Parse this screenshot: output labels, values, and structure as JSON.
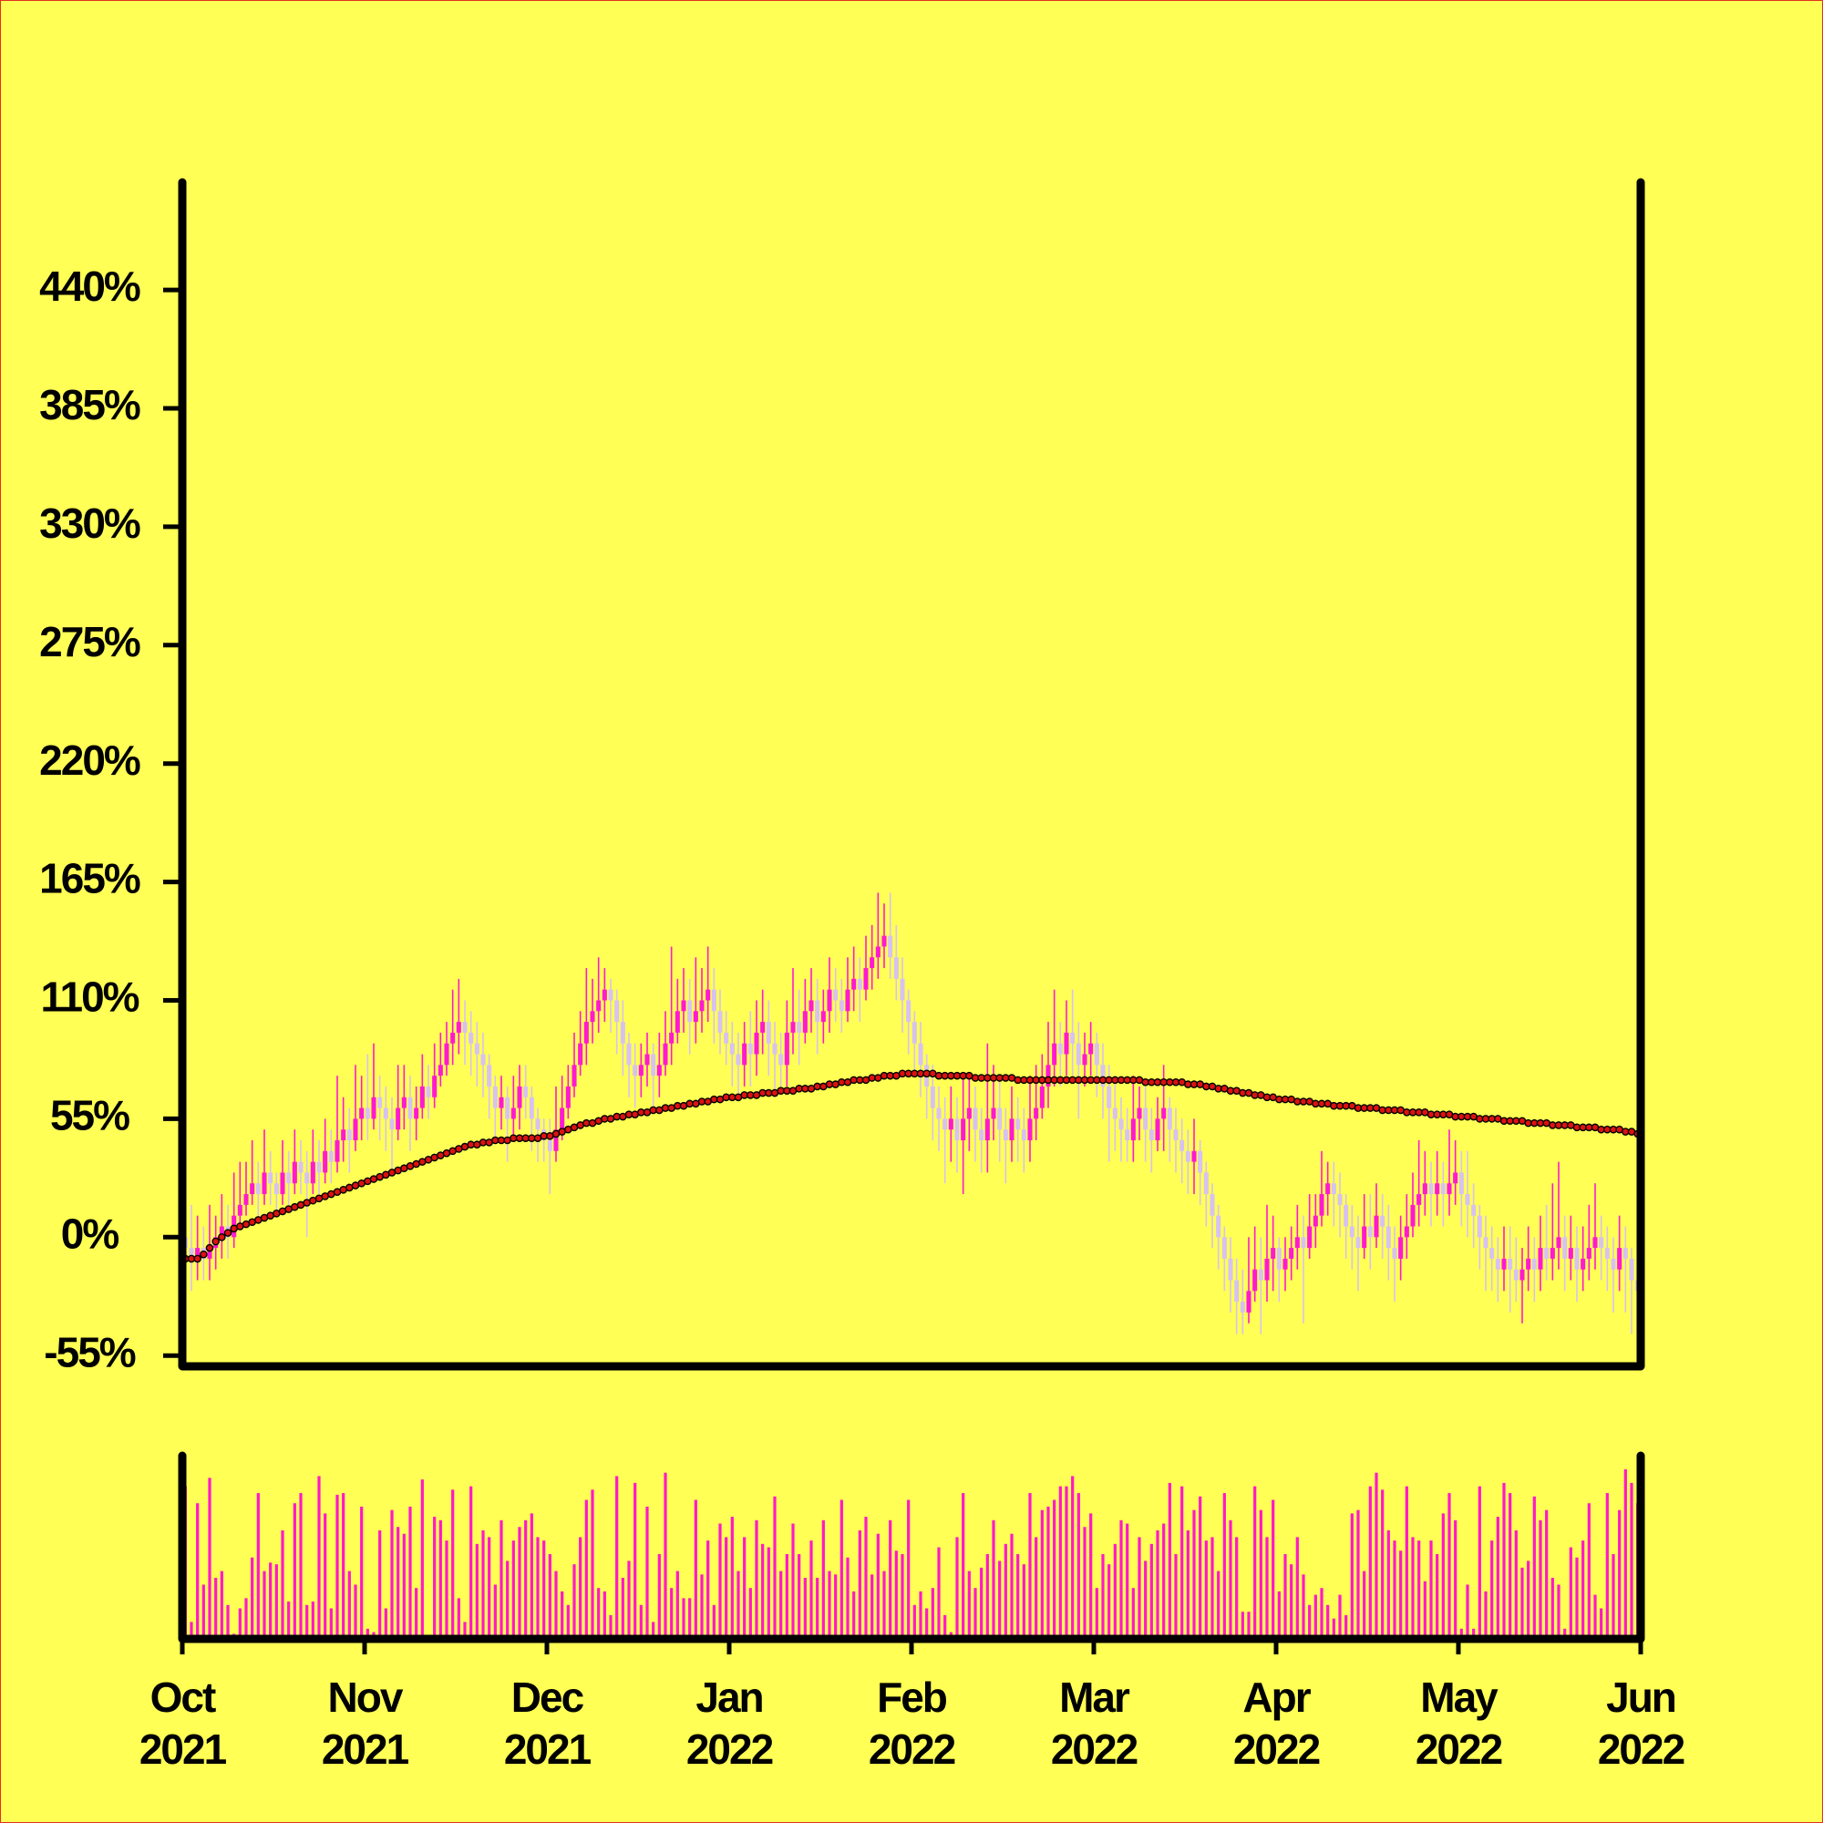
{
  "chart_data": {
    "type": "candlestick",
    "ylim": [
      -60,
      490
    ],
    "yticks": [
      {
        "value": -55,
        "label": "-55%"
      },
      {
        "value": 0,
        "label": "0%"
      },
      {
        "value": 55,
        "label": "55%"
      },
      {
        "value": 110,
        "label": "110%"
      },
      {
        "value": 165,
        "label": "165%"
      },
      {
        "value": 220,
        "label": "220%"
      },
      {
        "value": 275,
        "label": "275%"
      },
      {
        "value": 330,
        "label": "330%"
      },
      {
        "value": 385,
        "label": "385%"
      },
      {
        "value": 440,
        "label": "440%"
      }
    ],
    "x_tick_labels": [
      [
        "Oct",
        "2021"
      ],
      [
        "Nov",
        "2021"
      ],
      [
        "Dec",
        "2021"
      ],
      [
        "Jan",
        "2022"
      ],
      [
        "Feb",
        "2022"
      ],
      [
        "Mar",
        "2022"
      ],
      [
        "Apr",
        "2022"
      ],
      [
        "May",
        "2022"
      ],
      [
        "Jun",
        "2022"
      ]
    ],
    "candles": {
      "up_color": "#ff19d2",
      "down_color": "#d6c2f2",
      "open": [
        0,
        -5,
        -10,
        -5,
        -10,
        -5,
        0,
        5,
        0,
        10,
        15,
        20,
        25,
        20,
        30,
        25,
        20,
        30,
        25,
        35,
        30,
        25,
        35,
        30,
        40,
        35,
        45,
        50,
        45,
        55,
        60,
        55,
        65,
        60,
        55,
        50,
        60,
        65,
        55,
        60,
        70,
        65,
        75,
        80,
        90,
        95,
        100,
        95,
        90,
        85,
        80,
        70,
        60,
        65,
        55,
        60,
        70,
        65,
        55,
        50,
        45,
        40,
        50,
        60,
        70,
        80,
        90,
        100,
        105,
        110,
        115,
        110,
        100,
        90,
        80,
        75,
        80,
        85,
        75,
        80,
        90,
        95,
        105,
        110,
        100,
        105,
        110,
        115,
        105,
        95,
        90,
        85,
        80,
        90,
        85,
        95,
        100,
        90,
        85,
        80,
        95,
        100,
        95,
        105,
        110,
        100,
        105,
        115,
        110,
        105,
        115,
        120,
        115,
        125,
        130,
        135,
        140,
        130,
        120,
        110,
        100,
        90,
        80,
        70,
        60,
        55,
        50,
        55,
        45,
        55,
        60,
        50,
        45,
        55,
        60,
        50,
        45,
        55,
        50,
        45,
        55,
        60,
        70,
        80,
        90,
        85,
        95,
        90,
        80,
        85,
        90,
        80,
        70,
        60,
        55,
        50,
        45,
        55,
        60,
        50,
        45,
        55,
        60,
        50,
        45,
        40,
        35,
        40,
        30,
        20,
        10,
        0,
        -10,
        -20,
        -30,
        -35,
        -25,
        -15,
        -20,
        -10,
        -5,
        -15,
        -10,
        -5,
        0,
        -5,
        5,
        10,
        20,
        25,
        20,
        15,
        5,
        0,
        -5,
        5,
        0,
        10,
        5,
        -5,
        -10,
        0,
        5,
        15,
        20,
        25,
        20,
        25,
        20,
        25,
        30,
        20,
        15,
        10,
        0,
        -5,
        -10,
        -15,
        -10,
        -15,
        -20,
        -15,
        -10,
        -15,
        -5,
        -10,
        -5,
        0,
        -10,
        -5,
        -15,
        -10,
        -5,
        0,
        -5,
        -10,
        -15,
        -5,
        -10,
        -20
      ],
      "high": [
        20,
        15,
        10,
        5,
        15,
        10,
        20,
        15,
        30,
        35,
        35,
        45,
        35,
        50,
        40,
        30,
        45,
        40,
        50,
        45,
        40,
        50,
        45,
        55,
        50,
        75,
        65,
        60,
        80,
        75,
        85,
        90,
        75,
        70,
        65,
        80,
        80,
        75,
        70,
        85,
        80,
        90,
        95,
        100,
        115,
        120,
        110,
        105,
        100,
        95,
        85,
        75,
        75,
        70,
        75,
        80,
        80,
        70,
        60,
        55,
        55,
        70,
        75,
        80,
        95,
        105,
        125,
        120,
        130,
        125,
        120,
        115,
        110,
        95,
        90,
        90,
        95,
        90,
        95,
        105,
        135,
        120,
        125,
        120,
        130,
        125,
        135,
        125,
        115,
        105,
        100,
        95,
        100,
        105,
        110,
        115,
        110,
        100,
        95,
        110,
        125,
        115,
        120,
        125,
        120,
        115,
        130,
        125,
        120,
        130,
        135,
        130,
        140,
        145,
        160,
        155,
        160,
        145,
        130,
        115,
        105,
        100,
        85,
        80,
        70,
        65,
        70,
        65,
        75,
        75,
        70,
        60,
        90,
        80,
        75,
        60,
        70,
        65,
        60,
        75,
        80,
        85,
        100,
        115,
        100,
        110,
        115,
        100,
        95,
        100,
        95,
        90,
        80,
        75,
        65,
        60,
        75,
        70,
        70,
        60,
        65,
        80,
        65,
        60,
        55,
        50,
        55,
        45,
        35,
        25,
        15,
        5,
        0,
        -10,
        -15,
        0,
        5,
        0,
        15,
        10,
        0,
        0,
        5,
        15,
        10,
        20,
        20,
        40,
        35,
        35,
        30,
        20,
        15,
        10,
        20,
        20,
        25,
        20,
        15,
        5,
        10,
        20,
        30,
        45,
        40,
        35,
        40,
        35,
        50,
        45,
        40,
        40,
        25,
        15,
        10,
        5,
        0,
        5,
        5,
        0,
        -5,
        5,
        0,
        10,
        15,
        25,
        35,
        10,
        10,
        5,
        5,
        15,
        25,
        10,
        5,
        0,
        10,
        5,
        -5,
        -10
      ],
      "low": [
        -35,
        -25,
        -20,
        -20,
        -20,
        -15,
        -10,
        -10,
        -5,
        5,
        10,
        15,
        10,
        15,
        15,
        10,
        15,
        15,
        20,
        20,
        0,
        20,
        20,
        25,
        25,
        30,
        35,
        30,
        40,
        45,
        45,
        50,
        45,
        40,
        30,
        45,
        50,
        40,
        45,
        55,
        55,
        60,
        70,
        75,
        80,
        85,
        80,
        75,
        70,
        65,
        55,
        45,
        50,
        35,
        45,
        50,
        55,
        40,
        35,
        35,
        20,
        35,
        45,
        55,
        65,
        75,
        80,
        90,
        95,
        100,
        95,
        85,
        75,
        65,
        60,
        65,
        70,
        60,
        65,
        75,
        80,
        90,
        95,
        85,
        90,
        95,
        100,
        90,
        85,
        80,
        70,
        65,
        70,
        70,
        75,
        85,
        75,
        65,
        70,
        70,
        85,
        80,
        90,
        95,
        85,
        90,
        95,
        100,
        95,
        100,
        105,
        100,
        110,
        115,
        120,
        125,
        120,
        110,
        95,
        85,
        75,
        65,
        55,
        45,
        40,
        25,
        35,
        30,
        20,
        40,
        35,
        30,
        30,
        45,
        35,
        25,
        35,
        35,
        30,
        35,
        45,
        55,
        60,
        70,
        70,
        75,
        75,
        55,
        70,
        75,
        65,
        55,
        35,
        40,
        35,
        35,
        35,
        45,
        35,
        30,
        40,
        40,
        35,
        30,
        25,
        20,
        20,
        15,
        5,
        -5,
        -15,
        -25,
        -35,
        -45,
        -45,
        -40,
        -30,
        -45,
        -30,
        -25,
        -30,
        -25,
        -20,
        -15,
        -40,
        -10,
        -5,
        5,
        10,
        5,
        0,
        -10,
        -15,
        -25,
        -10,
        -15,
        -5,
        -10,
        -20,
        -30,
        -20,
        -10,
        0,
        5,
        10,
        5,
        10,
        5,
        10,
        15,
        5,
        0,
        -5,
        -15,
        -25,
        -25,
        -30,
        -25,
        -35,
        -30,
        -40,
        -25,
        -30,
        -25,
        -20,
        -20,
        -15,
        -25,
        -20,
        -30,
        -25,
        -20,
        -15,
        -20,
        -25,
        -35,
        -25,
        -35,
        -45,
        -35
      ],
      "close": [
        -5,
        -10,
        -5,
        -10,
        -5,
        0,
        5,
        0,
        10,
        15,
        20,
        25,
        20,
        30,
        25,
        20,
        30,
        25,
        35,
        30,
        25,
        35,
        30,
        40,
        35,
        45,
        50,
        45,
        55,
        60,
        55,
        65,
        60,
        55,
        50,
        60,
        65,
        55,
        60,
        70,
        65,
        75,
        80,
        90,
        95,
        100,
        95,
        90,
        85,
        80,
        70,
        60,
        65,
        55,
        60,
        70,
        65,
        55,
        50,
        45,
        40,
        50,
        60,
        70,
        80,
        90,
        100,
        105,
        110,
        115,
        110,
        100,
        90,
        80,
        75,
        80,
        85,
        75,
        80,
        90,
        95,
        105,
        110,
        100,
        105,
        110,
        115,
        105,
        95,
        90,
        85,
        80,
        90,
        85,
        95,
        100,
        90,
        85,
        80,
        95,
        100,
        95,
        105,
        110,
        100,
        105,
        115,
        110,
        105,
        115,
        120,
        115,
        125,
        130,
        135,
        140,
        130,
        120,
        110,
        100,
        90,
        80,
        70,
        60,
        55,
        50,
        55,
        45,
        55,
        60,
        50,
        45,
        55,
        60,
        50,
        45,
        55,
        50,
        45,
        55,
        60,
        70,
        80,
        90,
        85,
        95,
        90,
        80,
        85,
        90,
        80,
        70,
        60,
        55,
        50,
        45,
        55,
        60,
        50,
        45,
        55,
        60,
        50,
        45,
        40,
        35,
        40,
        30,
        20,
        10,
        0,
        -10,
        -20,
        -30,
        -35,
        -25,
        -15,
        -20,
        -10,
        -5,
        -15,
        -10,
        -5,
        0,
        -5,
        5,
        10,
        20,
        25,
        20,
        15,
        5,
        0,
        -5,
        5,
        0,
        10,
        5,
        -5,
        -10,
        0,
        5,
        15,
        20,
        25,
        20,
        25,
        20,
        25,
        30,
        20,
        15,
        10,
        0,
        -5,
        -10,
        -15,
        -10,
        -15,
        -20,
        -15,
        -10,
        -15,
        -5,
        -10,
        -5,
        0,
        -10,
        -5,
        -15,
        -10,
        -5,
        0,
        -5,
        -10,
        -15,
        -5,
        -10,
        -20,
        -25
      ]
    },
    "moving_average": {
      "color": "#dd1111",
      "values": [
        -10,
        -10,
        -10,
        -8,
        -5,
        -2,
        0,
        2,
        4,
        5,
        6,
        7,
        8,
        9,
        10,
        11,
        12,
        13,
        14,
        15,
        16,
        17,
        18,
        19,
        20,
        21,
        22,
        23,
        24,
        25,
        26,
        27,
        28,
        29,
        30,
        31,
        32,
        33,
        34,
        35,
        36,
        37,
        38,
        39,
        40,
        41,
        42,
        43,
        43,
        44,
        44,
        45,
        45,
        45,
        46,
        46,
        46,
        46,
        46,
        47,
        47,
        48,
        49,
        50,
        51,
        52,
        53,
        53,
        54,
        55,
        55,
        56,
        56,
        57,
        57,
        58,
        58,
        59,
        59,
        60,
        60,
        61,
        61,
        62,
        62,
        63,
        63,
        64,
        64,
        65,
        65,
        65,
        66,
        66,
        66,
        67,
        67,
        67,
        68,
        68,
        68,
        69,
        69,
        69,
        70,
        70,
        71,
        71,
        72,
        72,
        73,
        73,
        73,
        74,
        74,
        75,
        75,
        75,
        76,
        76,
        76,
        76,
        76,
        76,
        75,
        75,
        75,
        75,
        75,
        75,
        74,
        74,
        74,
        74,
        74,
        74,
        74,
        73,
        73,
        73,
        73,
        73,
        73,
        73,
        73,
        73,
        73,
        73,
        73,
        73,
        73,
        73,
        73,
        73,
        73,
        73,
        73,
        73,
        72,
        72,
        72,
        72,
        72,
        72,
        72,
        71,
        71,
        71,
        70,
        70,
        69,
        69,
        68,
        68,
        67,
        67,
        66,
        66,
        65,
        65,
        64,
        64,
        64,
        63,
        63,
        63,
        62,
        62,
        62,
        61,
        61,
        61,
        61,
        60,
        60,
        60,
        60,
        59,
        59,
        59,
        59,
        58,
        58,
        58,
        58,
        57,
        57,
        57,
        57,
        56,
        56,
        56,
        56,
        55,
        55,
        55,
        55,
        54,
        54,
        54,
        54,
        53,
        53,
        53,
        53,
        52,
        52,
        52,
        52,
        51,
        51,
        51,
        51,
        50,
        50,
        50,
        50,
        49,
        49,
        48
      ]
    },
    "volume": {
      "color": "#ff19c8",
      "values": [
        90,
        10,
        80,
        32,
        95,
        36,
        40,
        20,
        3,
        18,
        24,
        48,
        86,
        40,
        45,
        44,
        64,
        22,
        80,
        86,
        20,
        22,
        96,
        74,
        18,
        85,
        86,
        40,
        32,
        78,
        6,
        4,
        64,
        18,
        76,
        66,
        62,
        78,
        30,
        94,
        2,
        72,
        70,
        58,
        88,
        24,
        10,
        90,
        56,
        64,
        60,
        32,
        70,
        46,
        58,
        66,
        70,
        74,
        60,
        58,
        50,
        40,
        28,
        20,
        44,
        60,
        82,
        88,
        30,
        28,
        14,
        96,
        36,
        46,
        92,
        20,
        78,
        10,
        50,
        98,
        30,
        40,
        24,
        24,
        82,
        38,
        58,
        20,
        68,
        60,
        72,
        40,
        60,
        30,
        70,
        56,
        54,
        84,
        40,
        50,
        68,
        50,
        36,
        58,
        36,
        70,
        40,
        38,
        82,
        48,
        28,
        64,
        72,
        38,
        62,
        40,
        70,
        52,
        50,
        82,
        20,
        28,
        18,
        30,
        54,
        14,
        4,
        60,
        86,
        40,
        30,
        42,
        50,
        70,
        46,
        56,
        62,
        50,
        44,
        86,
        60,
        76,
        78,
        82,
        90,
        90,
        96,
        86,
        66,
        74,
        30,
        50,
        44,
        56,
        70,
        68,
        30,
        60,
        46,
        56,
        64,
        68,
        92,
        50,
        90,
        64,
        76,
        84,
        58,
        60,
        40,
        86,
        70,
        60,
        16,
        16,
        90,
        76,
        60,
        82,
        28,
        50,
        44,
        60,
        38,
        20,
        26,
        30,
        20,
        12,
        26,
        14,
        74,
        76,
        40,
        90,
        98,
        88,
        64,
        58,
        52,
        90,
        60,
        58,
        34,
        58,
        50,
        74,
        86,
        70,
        6,
        32,
        6,
        90,
        28,
        58,
        72,
        92,
        86,
        64,
        42,
        46,
        84,
        70,
        76,
        36,
        32,
        6,
        54,
        48,
        58,
        80,
        26,
        18,
        86,
        50,
        76,
        100,
        92,
        80
      ]
    }
  }
}
